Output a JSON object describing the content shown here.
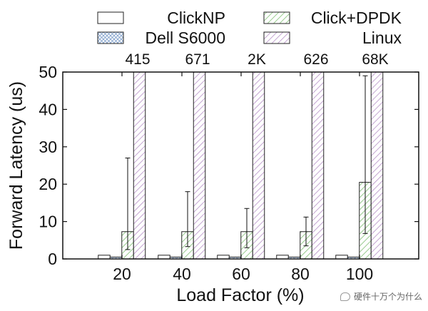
{
  "chart_data": {
    "type": "bar",
    "title": "",
    "xlabel": "Load Factor (%)",
    "ylabel": "Forward Latency (us)",
    "categories": [
      "20",
      "40",
      "60",
      "80",
      "100"
    ],
    "ylim": [
      0,
      50
    ],
    "yticks": [
      0,
      10,
      20,
      30,
      40,
      50
    ],
    "grid": false,
    "legend_position": "top",
    "series": [
      {
        "name": "ClickNP",
        "values": [
          1.0,
          1.0,
          1.0,
          1.0,
          1.0
        ],
        "err_low": [
          null,
          null,
          null,
          null,
          null
        ],
        "err_high": [
          null,
          null,
          null,
          null,
          null
        ],
        "pattern": "none"
      },
      {
        "name": "Dell S6000",
        "values": [
          0.5,
          0.5,
          0.5,
          0.5,
          0.5
        ],
        "err_low": [
          null,
          null,
          null,
          null,
          null
        ],
        "err_high": [
          null,
          null,
          null,
          null,
          null
        ],
        "pattern": "crosshatch"
      },
      {
        "name": "Click+DPDK",
        "values": [
          7.3,
          7.3,
          7.3,
          7.3,
          20.5
        ],
        "err_low": [
          2.5,
          3.3,
          3.0,
          3.5,
          6.8
        ],
        "err_high": [
          27.0,
          18.0,
          13.5,
          11.2,
          49.0
        ],
        "pattern": "diagonal-green"
      },
      {
        "name": "Linux",
        "values": [
          415,
          671,
          2000,
          626,
          68000
        ],
        "err_low": [
          null,
          null,
          null,
          null,
          null
        ],
        "err_high": [
          null,
          null,
          null,
          null,
          null
        ],
        "pattern": "diagonal-purple"
      }
    ],
    "annotations": [
      "415",
      "671",
      "2K",
      "626",
      "68K"
    ]
  },
  "watermark": {
    "text": "硬件十万个为什么",
    "icon": "chat-bubble-icon"
  }
}
